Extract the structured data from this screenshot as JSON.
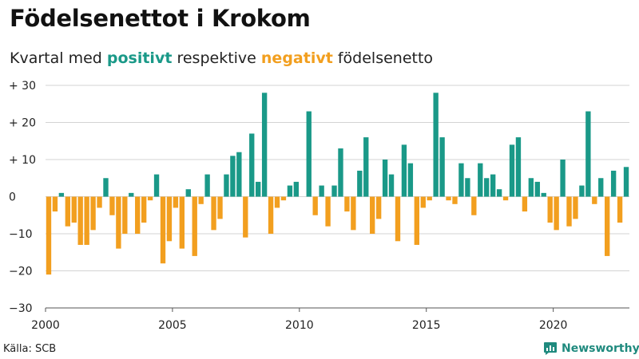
{
  "title": "Födelsenettot i Krokom",
  "subtitle": {
    "before": "Kvartal med ",
    "positive": "positivt",
    "middle": " respektive ",
    "negative": "negativt",
    "after": " födelsenetto"
  },
  "source": "Källa: SCB",
  "brand": "Newsworthy",
  "colors": {
    "positive": "#1a9988",
    "negative": "#f29f1f",
    "grid": "#d3d3d3",
    "brand": "#1f8a7e"
  },
  "chart_data": {
    "type": "bar",
    "title": "Födelsenettot i Krokom",
    "xlabel": "",
    "ylabel": "",
    "ylim": [
      -30,
      30
    ],
    "yticks": [
      30,
      20,
      10,
      0,
      -10,
      -20,
      -30
    ],
    "ytick_labels": [
      "+ 30",
      "+ 20",
      "+ 10",
      "0",
      "−10",
      "−20",
      "−30"
    ],
    "xticks": [
      2000,
      2005,
      2010,
      2015,
      2020
    ],
    "xtick_labels": [
      "2000",
      "2005",
      "2010",
      "2015",
      "2020"
    ],
    "grid": "horizontal",
    "start": "2000 Q1",
    "frequency": "quarterly",
    "values": [
      -21,
      -4,
      1,
      -8,
      -7,
      -13,
      -13,
      -9,
      -3,
      5,
      -5,
      -14,
      -10,
      1,
      -10,
      -7,
      -1,
      6,
      -18,
      -12,
      -3,
      -14,
      2,
      -16,
      -2,
      6,
      -9,
      -6,
      6,
      11,
      12,
      -11,
      17,
      4,
      28,
      -10,
      -3,
      -1,
      3,
      4,
      0,
      23,
      -5,
      3,
      -8,
      3,
      13,
      -4,
      -9,
      7,
      16,
      -10,
      -6,
      10,
      6,
      -12,
      14,
      9,
      -13,
      -3,
      -1,
      28,
      16,
      -1,
      -2,
      9,
      5,
      -5,
      9,
      5,
      6,
      2,
      -1,
      14,
      16,
      -4,
      5,
      4,
      1,
      -7,
      -9,
      10,
      -8,
      -6,
      3,
      23,
      -2,
      5,
      -16,
      7,
      -7,
      8
    ]
  }
}
